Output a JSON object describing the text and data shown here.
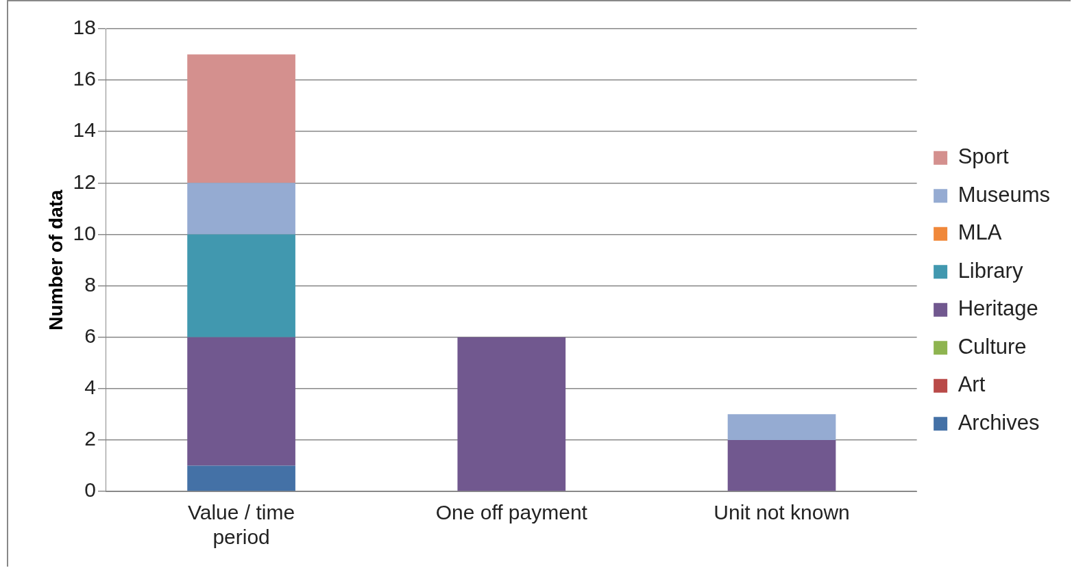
{
  "chart_data": {
    "type": "bar",
    "stacked": true,
    "ylabel": "Number of data",
    "categories": [
      "Value / time period",
      "One off payment",
      "Unit not known"
    ],
    "series": [
      {
        "name": "Archives",
        "color": "#4471a6",
        "values": [
          1,
          0,
          0
        ]
      },
      {
        "name": "Art",
        "color": "#b94a48",
        "values": [
          0,
          0,
          0
        ]
      },
      {
        "name": "Culture",
        "color": "#8eb450",
        "values": [
          0,
          0,
          0
        ]
      },
      {
        "name": "Heritage",
        "color": "#71588f",
        "values": [
          5,
          6,
          2
        ]
      },
      {
        "name": "Library",
        "color": "#4198af",
        "values": [
          4,
          0,
          0
        ]
      },
      {
        "name": "MLA",
        "color": "#f0883a",
        "values": [
          0,
          0,
          0
        ]
      },
      {
        "name": "Museums",
        "color": "#95abd2",
        "values": [
          2,
          0,
          1
        ]
      },
      {
        "name": "Sport",
        "color": "#d4908e",
        "values": [
          5,
          0,
          0
        ]
      }
    ],
    "ylim": [
      0,
      18
    ],
    "yticks": [
      0,
      2,
      4,
      6,
      8,
      10,
      12,
      14,
      16,
      18
    ],
    "grid": "y",
    "legend": "right"
  }
}
